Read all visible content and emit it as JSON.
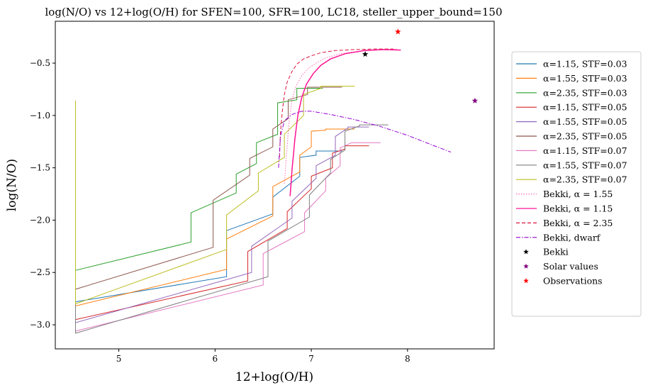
{
  "chart_data": {
    "type": "line",
    "title": "log(N/O) vs 12+log(O/H) for SFEN=100, SFR=100, LC18, steller_upper_bound=150",
    "xlabel": "12+log(O/H)",
    "ylabel": "log(N/O)",
    "xlim": [
      4.34,
      8.9
    ],
    "ylim": [
      -3.23,
      -0.1
    ],
    "xticks": [
      5,
      6,
      7,
      8
    ],
    "yticks": [
      -3.0,
      -2.5,
      -2.0,
      -1.5,
      -1.0,
      -0.5
    ],
    "xtick_labels": [
      "5",
      "6",
      "7",
      "8"
    ],
    "ytick_labels": [
      "−3.0",
      "−2.5",
      "−2.0",
      "−1.5",
      "−1.0",
      "−0.5"
    ],
    "grid": false,
    "legend_position": "right, outside plot",
    "series": [
      {
        "name": "$\\alpha$=1.15, STF=0.03",
        "label": "α=1.15, STF=0.03",
        "color": "#1f77b4",
        "style": "solid",
        "x": [
          4.55,
          4.55,
          6.12,
          6.12,
          6.6,
          6.6,
          6.88,
          6.88,
          7.05,
          7.05,
          7.32
        ],
        "y": [
          -0.86,
          -2.78,
          -2.54,
          -2.1,
          -1.94,
          -1.78,
          -1.58,
          -1.4,
          -1.38,
          -1.34,
          -1.34
        ]
      },
      {
        "name": "$\\alpha$=1.55, STF=0.03",
        "label": "α=1.55, STF=0.03",
        "color": "#ff7f0e",
        "style": "solid",
        "x": [
          4.55,
          4.55,
          6.12,
          6.12,
          6.6,
          6.6,
          6.88,
          6.88,
          7.0,
          7.0,
          7.15,
          7.15,
          7.45
        ],
        "y": [
          -0.86,
          -2.82,
          -2.47,
          -2.18,
          -1.96,
          -1.68,
          -1.54,
          -1.38,
          -1.3,
          -1.15,
          -1.14,
          -1.13,
          -1.13
        ]
      },
      {
        "name": "$\\alpha$=2.35, STF=0.03",
        "label": "α=2.35, STF=0.03",
        "color": "#2ca02c",
        "style": "solid",
        "x": [
          4.55,
          4.55,
          5.75,
          5.75,
          6.22,
          6.22,
          6.43,
          6.43,
          6.65,
          6.65,
          6.85,
          6.85,
          7.12
        ],
        "y": [
          -0.86,
          -2.48,
          -2.21,
          -1.93,
          -1.74,
          -1.56,
          -1.46,
          -1.26,
          -1.18,
          -0.88,
          -0.85,
          -0.74,
          -0.74
        ]
      },
      {
        "name": "$\\alpha$=1.15, STF=0.05",
        "label": "α=1.15, STF=0.05",
        "color": "#d62728",
        "style": "solid",
        "x": [
          4.55,
          4.55,
          6.34,
          6.34,
          6.75,
          6.75,
          7.0,
          7.0,
          7.22,
          7.22,
          7.35,
          7.35,
          7.6
        ],
        "y": [
          -0.86,
          -2.95,
          -2.58,
          -2.3,
          -2.08,
          -1.92,
          -1.7,
          -1.58,
          -1.5,
          -1.36,
          -1.32,
          -1.29,
          -1.29
        ]
      },
      {
        "name": "$\\alpha$=1.55, STF=0.05",
        "label": "α=1.55, STF=0.05",
        "color": "#9467bd",
        "style": "solid",
        "x": [
          4.55,
          4.55,
          6.38,
          6.38,
          6.8,
          6.8,
          7.05,
          7.05,
          7.25,
          7.25,
          7.38,
          7.38,
          7.6
        ],
        "y": [
          -0.86,
          -2.98,
          -2.5,
          -2.25,
          -1.98,
          -1.82,
          -1.6,
          -1.48,
          -1.38,
          -1.2,
          -1.12,
          -1.11,
          -1.11
        ]
      },
      {
        "name": "$\\alpha$=2.35, STF=0.05",
        "label": "α=2.35, STF=0.05",
        "color": "#8c564b",
        "style": "solid",
        "x": [
          4.55,
          4.55,
          5.98,
          5.98,
          6.36,
          6.36,
          6.6,
          6.6,
          6.76,
          6.76,
          6.96,
          6.96,
          7.32
        ],
        "y": [
          -0.86,
          -2.66,
          -2.26,
          -1.81,
          -1.57,
          -1.41,
          -1.3,
          -1.13,
          -1.03,
          -0.85,
          -0.8,
          -0.73,
          -0.73
        ]
      },
      {
        "name": "$\\alpha$=1.15, STF=0.07",
        "label": "α=1.15, STF=0.07",
        "color": "#e377c2",
        "style": "solid",
        "x": [
          4.55,
          4.55,
          6.5,
          6.5,
          6.93,
          6.93,
          7.15,
          7.15,
          7.3,
          7.3,
          7.42,
          7.42,
          7.72
        ],
        "y": [
          -0.86,
          -3.06,
          -2.62,
          -2.32,
          -2.11,
          -1.93,
          -1.72,
          -1.6,
          -1.48,
          -1.31,
          -1.26,
          -1.26,
          -1.26
        ]
      },
      {
        "name": "$\\alpha$=1.55, STF=0.07",
        "label": "α=1.55, STF=0.07",
        "color": "#7f7f7f",
        "style": "solid",
        "x": [
          4.55,
          4.55,
          6.55,
          6.55,
          6.98,
          6.98,
          7.2,
          7.2,
          7.35,
          7.35,
          7.5,
          7.5,
          7.8
        ],
        "y": [
          -0.86,
          -3.08,
          -2.54,
          -2.2,
          -1.97,
          -1.76,
          -1.55,
          -1.42,
          -1.33,
          -1.15,
          -1.1,
          -1.09,
          -1.09
        ]
      },
      {
        "name": "$\\alpha$=2.35, STF=0.07",
        "label": "α=2.35, STF=0.07",
        "color": "#bcbd22",
        "style": "solid",
        "x": [
          4.55,
          4.55,
          6.12,
          6.12,
          6.45,
          6.45,
          6.72,
          6.72,
          6.92,
          6.92,
          7.1,
          7.1,
          7.45
        ],
        "y": [
          -0.86,
          -2.8,
          -2.28,
          -1.95,
          -1.72,
          -1.55,
          -1.4,
          -1.18,
          -1.0,
          -0.8,
          -0.74,
          -0.72,
          -0.72
        ]
      },
      {
        "name": "Bekki, $\\alpha=1.55$",
        "label": "Bekki, α = 1.55",
        "color": "#ff69b4",
        "style": "dotted",
        "x": [
          6.72,
          6.74,
          6.77,
          6.8,
          6.84,
          6.9,
          6.97,
          7.05,
          7.15,
          7.3,
          7.5,
          7.75,
          7.9
        ],
        "y": [
          -1.65,
          -1.4,
          -1.05,
          -0.85,
          -0.72,
          -0.62,
          -0.55,
          -0.5,
          -0.45,
          -0.41,
          -0.385,
          -0.37,
          -0.365
        ]
      },
      {
        "name": "Bekki, $\\alpha=1.15$",
        "label": "Bekki, α = 1.15",
        "color": "#ff1493",
        "style": "solid",
        "x": [
          6.78,
          6.8,
          6.83,
          6.86,
          6.9,
          6.95,
          7.02,
          7.1,
          7.2,
          7.35,
          7.55,
          7.75,
          7.93
        ],
        "y": [
          -1.77,
          -1.52,
          -1.22,
          -1.0,
          -0.83,
          -0.7,
          -0.6,
          -0.52,
          -0.46,
          -0.41,
          -0.38,
          -0.37,
          -0.375
        ]
      },
      {
        "name": "Bekki, $\\alpha=2.35$",
        "label": "Bekki, α = 2.35",
        "color": "#dc143c",
        "style": "dashed",
        "x": [
          6.67,
          6.68,
          6.7,
          6.72,
          6.75,
          6.8,
          6.85,
          6.92,
          7.0,
          7.1,
          7.25,
          7.45,
          7.65,
          7.85
        ],
        "y": [
          -1.4,
          -1.15,
          -0.95,
          -0.8,
          -0.68,
          -0.58,
          -0.51,
          -0.46,
          -0.43,
          -0.4,
          -0.38,
          -0.37,
          -0.365,
          -0.365
        ]
      },
      {
        "name": "Bekki, dwarf",
        "label": "Bekki, dwarf",
        "color": "#9400d3",
        "style": "dashdot",
        "x": [
          6.66,
          6.68,
          6.72,
          6.8,
          6.9,
          7.0,
          7.2,
          7.45,
          7.7,
          8.0,
          8.25,
          8.45
        ],
        "y": [
          -1.5,
          -1.2,
          -1.05,
          -0.99,
          -0.96,
          -0.96,
          -0.99,
          -1.04,
          -1.1,
          -1.19,
          -1.28,
          -1.35
        ]
      }
    ],
    "markers": [
      {
        "name": "Bekki",
        "label": "Bekki",
        "color": "#000000",
        "x": 7.56,
        "y": -0.415
      },
      {
        "name": "Solar values",
        "label": "Solar values",
        "color": "#800080",
        "x": 8.7,
        "y": -0.86
      },
      {
        "name": "Observations",
        "label": "Observations",
        "color": "#ff0000",
        "x": 7.9,
        "y": -0.2
      }
    ]
  }
}
